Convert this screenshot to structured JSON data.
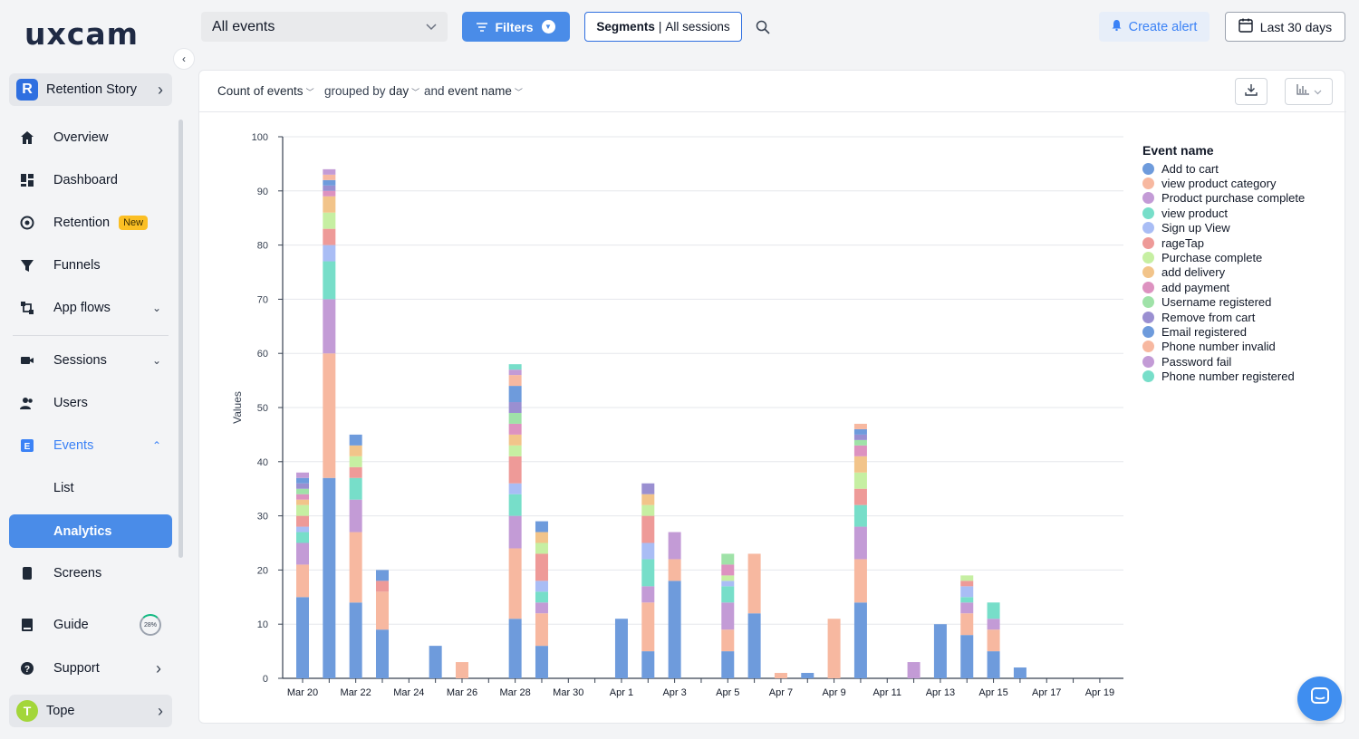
{
  "app": {
    "logo": "uxcam"
  },
  "sidebar": {
    "project": {
      "initial": "R",
      "name": "Retention Story"
    },
    "items": {
      "overview": "Overview",
      "dashboard": "Dashboard",
      "retention": "Retention",
      "retention_badge": "New",
      "funnels": "Funnels",
      "app_flows": "App flows",
      "sessions": "Sessions",
      "users": "Users",
      "events": "Events",
      "list": "List",
      "analytics": "Analytics",
      "screens": "Screens",
      "guide": "Guide",
      "guide_progress": "28%",
      "support": "Support"
    },
    "user": {
      "initial": "T",
      "name": "Tope"
    }
  },
  "topbar": {
    "event_select": "All events",
    "filters": "Filters",
    "segments_label": "Segments",
    "segments_value": "All sessions",
    "create_alert": "Create alert",
    "date_range": "Last 30 days"
  },
  "query": {
    "metric": "Count of events",
    "grouped_by_prefix": "grouped by",
    "grouped_by": "day",
    "and_prefix": "and",
    "breakdown": "event name"
  },
  "colors": {
    "accent": "#4a8ce8",
    "series": [
      "#6e9bdc",
      "#f7b8a0",
      "#c39bd6",
      "#77dec9",
      "#a9bdf5",
      "#ee9a98",
      "#c6efa2",
      "#f2c48a",
      "#dd92c0",
      "#9fe2a8",
      "#9a8fd1",
      "#6e9bdc",
      "#f7b8a0",
      "#c39bd6",
      "#77dec9"
    ]
  },
  "chart_data": {
    "type": "bar",
    "stacked": true,
    "ylabel": "Values",
    "ylim": [
      0,
      100
    ],
    "yticks": [
      0,
      10,
      20,
      30,
      40,
      50,
      60,
      70,
      80,
      90,
      100
    ],
    "x_tick_labels": [
      "Mar 20",
      "Mar 22",
      "Mar 24",
      "Mar 26",
      "Mar 28",
      "Mar 30",
      "Apr 1",
      "Apr 3",
      "Apr 5",
      "Apr 7",
      "Apr 9",
      "Apr 11",
      "Apr 13",
      "Apr 15",
      "Apr 17",
      "Apr 19"
    ],
    "legend_title": "Event name",
    "legend_position": "right",
    "categories": [
      "Mar 20",
      "Mar 21",
      "Mar 22",
      "Mar 23",
      "Mar 24",
      "Mar 25",
      "Mar 26",
      "Mar 27",
      "Mar 28",
      "Mar 29",
      "Mar 30",
      "Mar 31",
      "Apr 1",
      "Apr 2",
      "Apr 3",
      "Apr 4",
      "Apr 5",
      "Apr 6",
      "Apr 7",
      "Apr 8",
      "Apr 9",
      "Apr 10",
      "Apr 11",
      "Apr 12",
      "Apr 13",
      "Apr 14",
      "Apr 15",
      "Apr 16",
      "Apr 17",
      "Apr 18",
      "Apr 19"
    ],
    "series": [
      {
        "name": "Add to cart",
        "values": [
          15,
          37,
          14,
          9,
          0,
          6,
          0,
          0,
          11,
          6,
          0,
          0,
          11,
          5,
          18,
          0,
          5,
          12,
          0,
          1,
          0,
          14,
          0,
          0,
          10,
          8,
          5,
          2,
          0,
          0,
          0
        ]
      },
      {
        "name": "view product category",
        "values": [
          6,
          23,
          13,
          7,
          0,
          0,
          3,
          0,
          13,
          6,
          0,
          0,
          0,
          9,
          4,
          0,
          4,
          11,
          1,
          0,
          11,
          8,
          0,
          0,
          0,
          4,
          4,
          0,
          0,
          0,
          0
        ]
      },
      {
        "name": "Product purchase complete",
        "values": [
          4,
          10,
          6,
          0,
          0,
          0,
          0,
          0,
          6,
          2,
          0,
          0,
          0,
          3,
          5,
          0,
          5,
          0,
          0,
          0,
          0,
          6,
          0,
          3,
          0,
          2,
          2,
          0,
          0,
          0,
          0
        ]
      },
      {
        "name": "view product",
        "values": [
          2,
          7,
          4,
          0,
          0,
          0,
          0,
          0,
          4,
          2,
          0,
          0,
          0,
          5,
          0,
          0,
          3,
          0,
          0,
          0,
          0,
          4,
          0,
          0,
          0,
          1,
          3,
          0,
          0,
          0,
          0
        ]
      },
      {
        "name": "Sign up View",
        "values": [
          1,
          3,
          0,
          0,
          0,
          0,
          0,
          0,
          2,
          2,
          0,
          0,
          0,
          3,
          0,
          0,
          1,
          0,
          0,
          0,
          0,
          0,
          0,
          0,
          0,
          2,
          0,
          0,
          0,
          0,
          0
        ]
      },
      {
        "name": "rageTap",
        "values": [
          2,
          3,
          2,
          2,
          0,
          0,
          0,
          0,
          5,
          5,
          0,
          0,
          0,
          5,
          0,
          0,
          0,
          0,
          0,
          0,
          0,
          3,
          0,
          0,
          0,
          1,
          0,
          0,
          0,
          0,
          0
        ]
      },
      {
        "name": "Purchase complete",
        "values": [
          2,
          3,
          2,
          0,
          0,
          0,
          0,
          0,
          2,
          2,
          0,
          0,
          0,
          2,
          0,
          0,
          1,
          0,
          0,
          0,
          0,
          3,
          0,
          0,
          0,
          1,
          0,
          0,
          0,
          0,
          0
        ]
      },
      {
        "name": "add delivery",
        "values": [
          1,
          3,
          2,
          0,
          0,
          0,
          0,
          0,
          2,
          2,
          0,
          0,
          0,
          2,
          0,
          0,
          0,
          0,
          0,
          0,
          0,
          3,
          0,
          0,
          0,
          0,
          0,
          0,
          0,
          0,
          0
        ]
      },
      {
        "name": "add payment",
        "values": [
          1,
          1,
          0,
          0,
          0,
          0,
          0,
          0,
          2,
          0,
          0,
          0,
          0,
          0,
          0,
          0,
          2,
          0,
          0,
          0,
          0,
          2,
          0,
          0,
          0,
          0,
          0,
          0,
          0,
          0,
          0
        ]
      },
      {
        "name": "Username registered",
        "values": [
          1,
          0,
          0,
          0,
          0,
          0,
          0,
          0,
          2,
          0,
          0,
          0,
          0,
          0,
          0,
          0,
          2,
          0,
          0,
          0,
          0,
          1,
          0,
          0,
          0,
          0,
          0,
          0,
          0,
          0,
          0
        ]
      },
      {
        "name": "Remove from cart",
        "values": [
          1,
          1,
          0,
          0,
          0,
          0,
          0,
          0,
          2,
          0,
          0,
          0,
          0,
          2,
          0,
          0,
          0,
          0,
          0,
          0,
          0,
          1,
          0,
          0,
          0,
          0,
          0,
          0,
          0,
          0,
          0
        ]
      },
      {
        "name": "Email registered",
        "values": [
          1,
          1,
          2,
          2,
          0,
          0,
          0,
          0,
          3,
          2,
          0,
          0,
          0,
          0,
          0,
          0,
          0,
          0,
          0,
          0,
          0,
          1,
          0,
          0,
          0,
          0,
          0,
          0,
          0,
          0,
          0
        ]
      },
      {
        "name": "Phone number invalid",
        "values": [
          0,
          1,
          0,
          0,
          0,
          0,
          0,
          0,
          2,
          0,
          0,
          0,
          0,
          0,
          0,
          0,
          0,
          0,
          0,
          0,
          0,
          1,
          0,
          0,
          0,
          0,
          0,
          0,
          0,
          0,
          0
        ]
      },
      {
        "name": "Password fail",
        "values": [
          1,
          1,
          0,
          0,
          0,
          0,
          0,
          0,
          1,
          0,
          0,
          0,
          0,
          0,
          0,
          0,
          0,
          0,
          0,
          0,
          0,
          0,
          0,
          0,
          0,
          0,
          0,
          0,
          0,
          0,
          0
        ]
      },
      {
        "name": "Phone number registered",
        "values": [
          0,
          0,
          0,
          0,
          0,
          0,
          0,
          0,
          1,
          0,
          0,
          0,
          0,
          0,
          0,
          0,
          0,
          0,
          0,
          0,
          0,
          0,
          0,
          0,
          0,
          0,
          0,
          0,
          0,
          0,
          0
        ]
      }
    ]
  }
}
